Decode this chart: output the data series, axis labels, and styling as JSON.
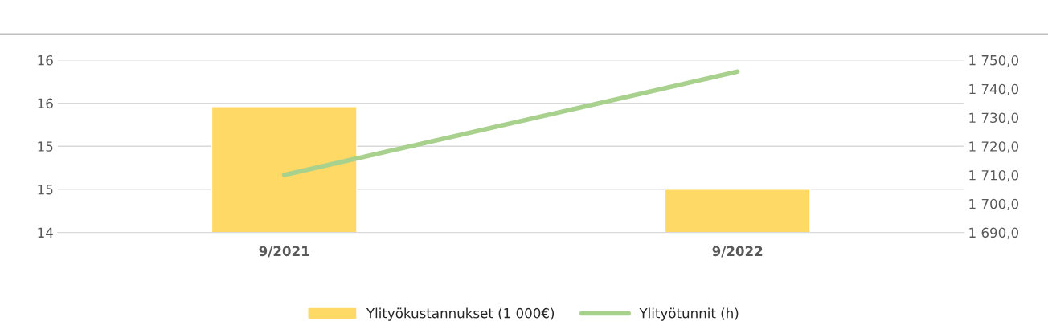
{
  "chart_data": {
    "type": "bar",
    "categories": [
      "9/2021",
      "9/2022"
    ],
    "series": [
      {
        "name": "Ylityökustannukset (1 000€)",
        "color": "#ffd966",
        "values": [
          15.46,
          14.5
        ]
      },
      {
        "name": "Ylityötunnit (h)",
        "type": "line",
        "axis": "y2",
        "color": "#a9d18e",
        "values": [
          1710,
          1746
        ]
      }
    ],
    "ylim": [
      14,
      16
    ],
    "yticks": [
      14,
      {
        "value": 14.5,
        "label": "15"
      },
      15,
      {
        "value": 15.5,
        "label": "16"
      },
      16
    ],
    "y2lim": [
      1690,
      1750
    ],
    "y2ticks": [
      {
        "value": 1690,
        "label": "1 690,0"
      },
      {
        "value": 1700,
        "label": "1 700,0"
      },
      {
        "value": 1710,
        "label": "1 710,0"
      },
      {
        "value": 1720,
        "label": "1 720,0"
      },
      {
        "value": 1730,
        "label": "1 730,0"
      },
      {
        "value": 1740,
        "label": "1 740,0"
      },
      {
        "value": 1750,
        "label": "1 750,0"
      }
    ],
    "grid": "y",
    "legend": "bottom",
    "marker": "none"
  }
}
